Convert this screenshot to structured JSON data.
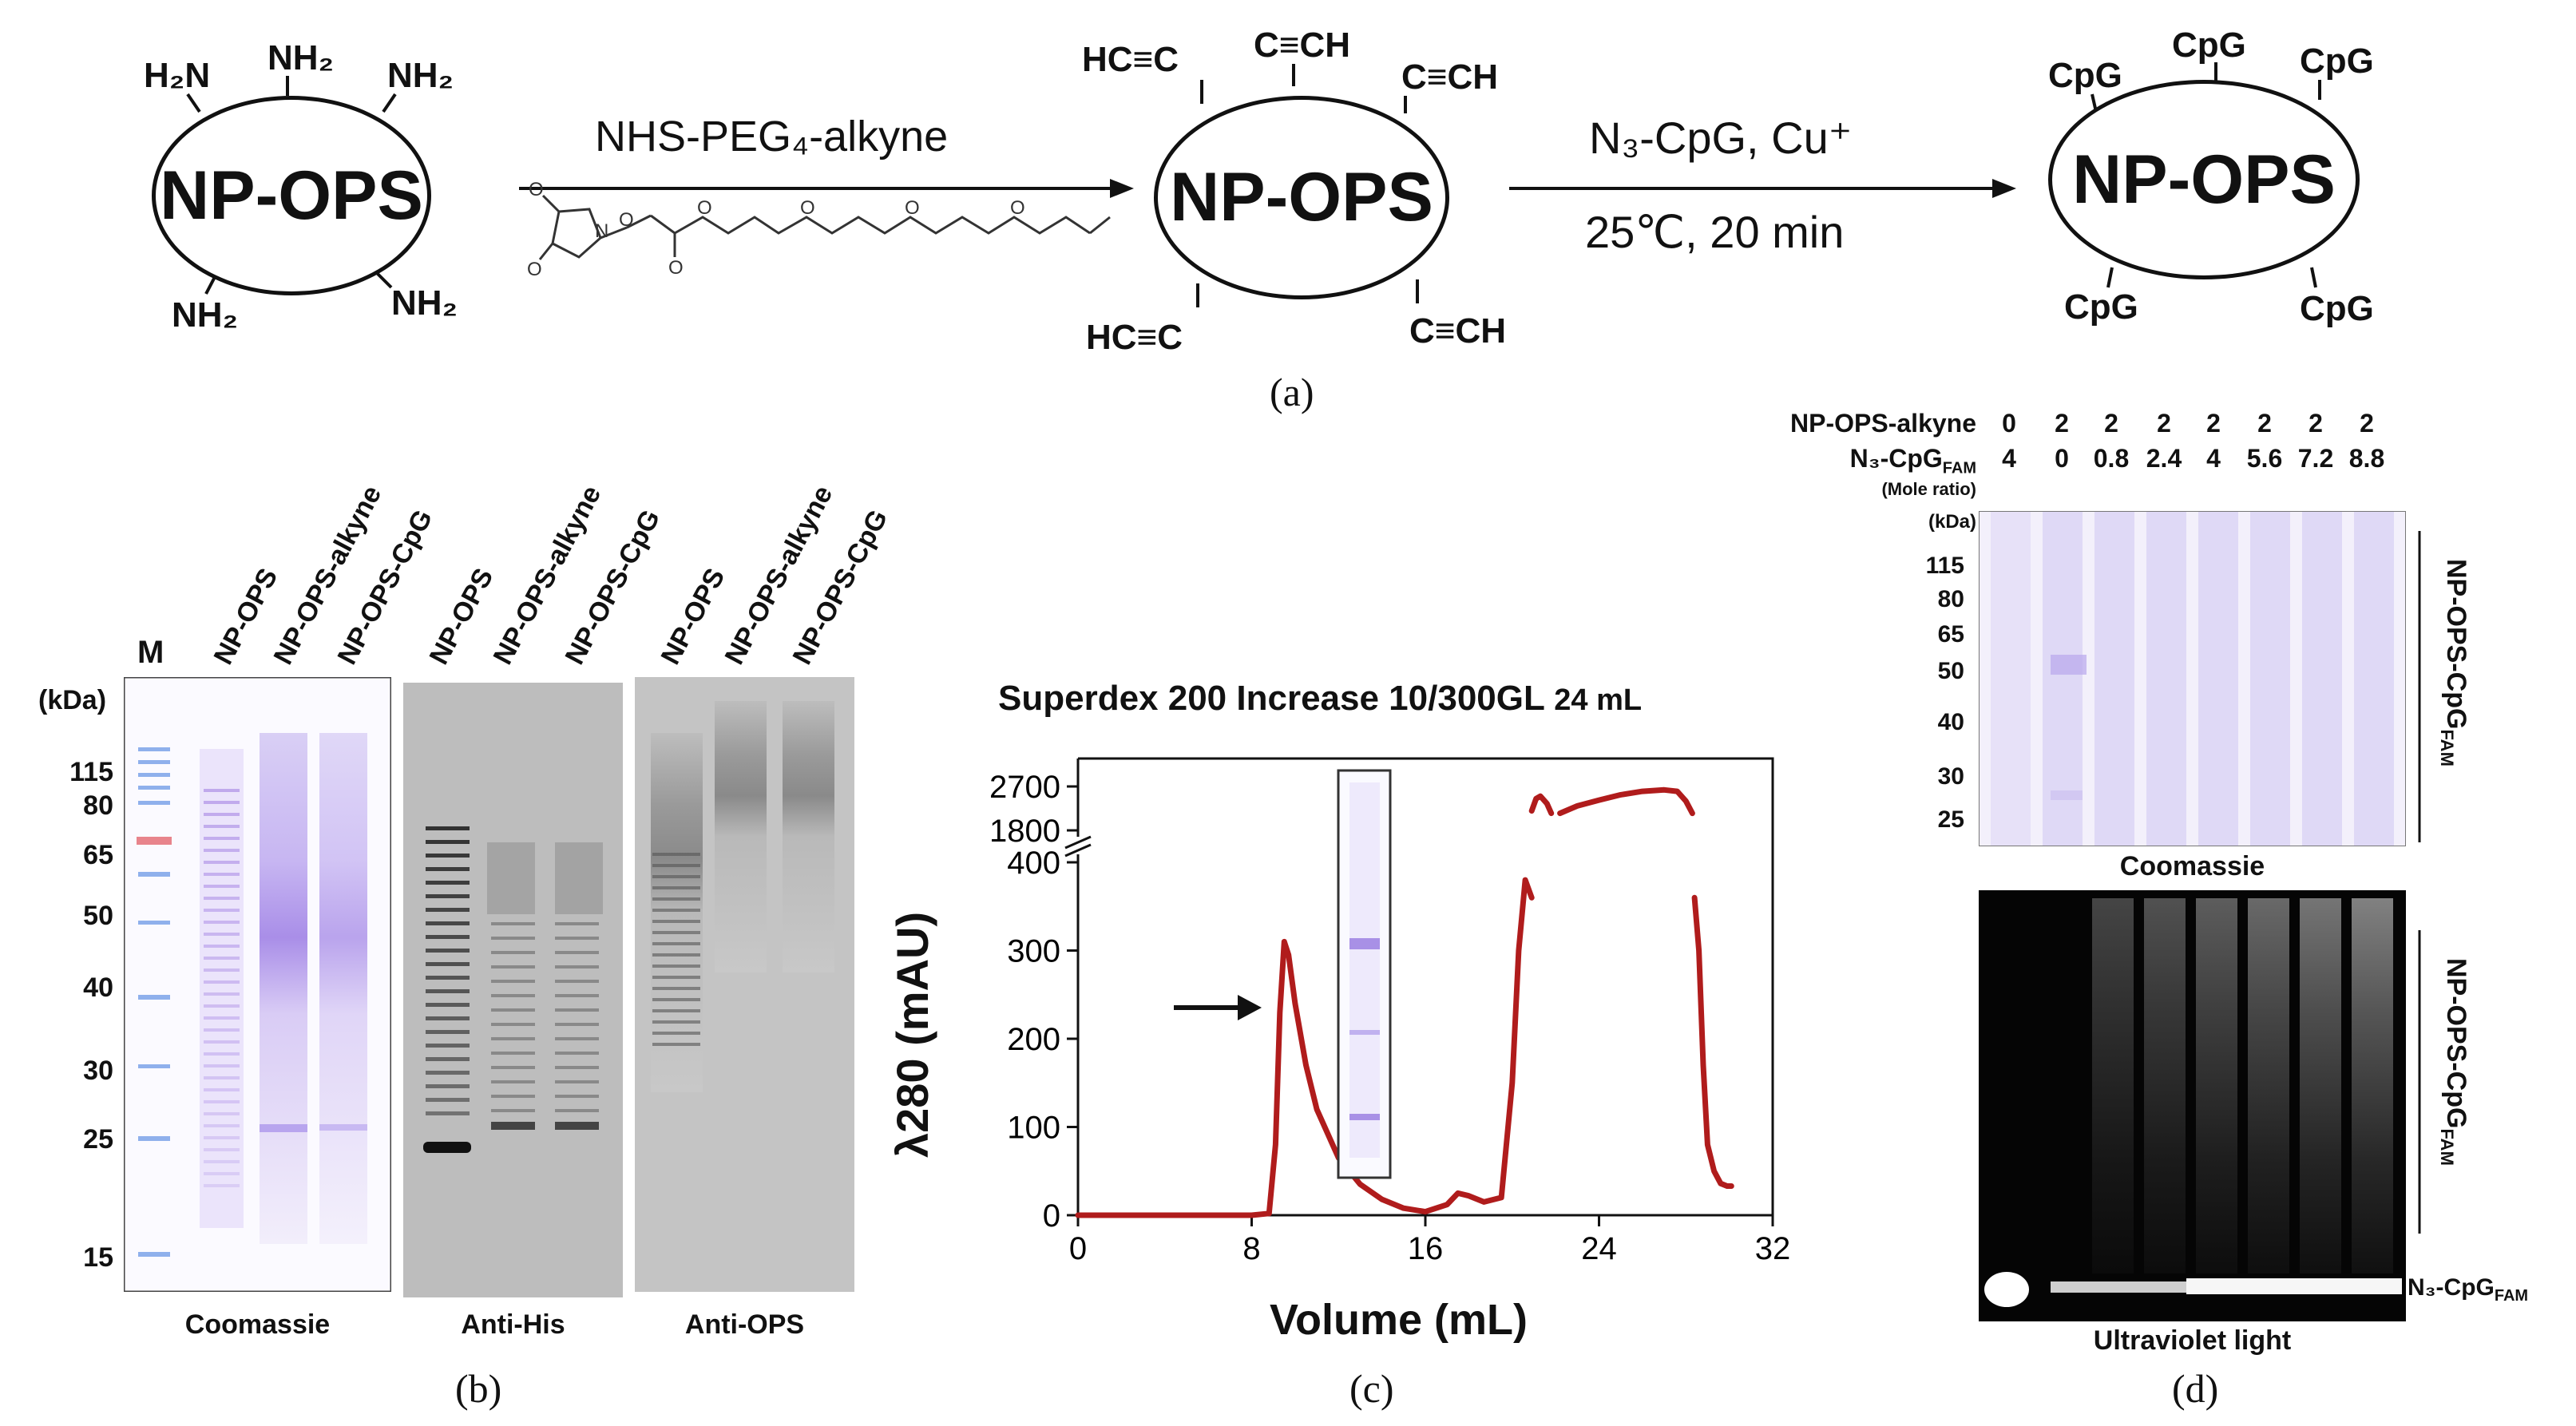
{
  "panel_a": {
    "np1": {
      "center": "NP-OPS",
      "groups": [
        "H₂N",
        "NH₂",
        "NH₂",
        "NH₂",
        "NH₂"
      ]
    },
    "arrow1_label": "NHS-PEG₄-alkyne",
    "np2": {
      "center": "NP-OPS",
      "groups": [
        "HC≡C",
        "C≡CH",
        "C≡CH",
        "HC≡C",
        "C≡CH"
      ]
    },
    "arrow2_label_top": "N₃-CpG, Cu⁺",
    "arrow2_label_bottom": "25℃,  20 min",
    "np3": {
      "center": "NP-OPS",
      "groups": [
        "CpG",
        "CpG",
        "CpG",
        "CpG",
        "CpG"
      ]
    },
    "label": "(a)"
  },
  "panel_b": {
    "marker_label": "M",
    "kda_label": "(kDa)",
    "mw_markers": [
      "115",
      "80",
      "65",
      "50",
      "40",
      "30",
      "25",
      "15"
    ],
    "lanes": [
      "NP-OPS",
      "NP-OPS-alkyne",
      "NP-OPS-CpG"
    ],
    "captions": [
      "Coomassie",
      "Anti-His",
      "Anti-OPS"
    ],
    "label": "(b)"
  },
  "panel_c": {
    "title": "Superdex 200 Increase 10/300GL",
    "title_suffix": "24 mL",
    "ylabel": "λ280 (mAU)",
    "xlabel": "Volume (mL)",
    "label": "(c)"
  },
  "chart_data": {
    "type": "line",
    "title": "Superdex 200 Increase 10/300GL 24 mL",
    "xlabel": "Volume (mL)",
    "ylabel": "λ280 (mAU)",
    "xlim": [
      0,
      32
    ],
    "ylim_lower": [
      0,
      400
    ],
    "ylim_upper": [
      1800,
      2700
    ],
    "x_ticks": [
      "0",
      "8",
      "16",
      "24",
      "32"
    ],
    "y_ticks_lower": [
      "0",
      "100",
      "200",
      "300",
      "400"
    ],
    "y_ticks_upper": [
      "1800",
      "2700"
    ],
    "color": "#b01c1c",
    "series": [
      {
        "x": [
          0,
          4,
          8,
          8.8,
          9.1,
          9.3,
          9.5,
          9.7,
          10.0,
          10.5,
          11.0,
          12.0,
          13.0,
          14.0,
          15.0,
          16.0,
          17.0,
          17.5,
          18.0,
          18.7,
          19.5,
          20.0,
          20.3,
          20.6,
          20.9
        ],
        "y": [
          0,
          0,
          0,
          2,
          80,
          230,
          310,
          295,
          240,
          170,
          120,
          65,
          35,
          18,
          8,
          4,
          12,
          25,
          22,
          15,
          20,
          150,
          300,
          380,
          420
        ]
      },
      {
        "x": [
          28.4,
          28.6,
          28.8,
          29.0,
          29.3,
          29.6,
          29.9,
          30.1
        ],
        "y": [
          420,
          300,
          170,
          80,
          50,
          36,
          33,
          33
        ]
      },
      {
        "x": [
          20.9,
          21.1,
          21.3,
          21.6,
          21.8
        ],
        "y": [
          2200,
          2450,
          2500,
          2350,
          2150
        ]
      },
      {
        "x": [
          22.2,
          23.0,
          24.0,
          25.0,
          26.0,
          27.0,
          27.6,
          28.0,
          28.3
        ],
        "y": [
          2150,
          2300,
          2420,
          2530,
          2600,
          2630,
          2600,
          2400,
          2150
        ]
      }
    ]
  },
  "panel_d": {
    "row1_label": "NP-OPS-alkyne",
    "row1_values": [
      "0",
      "2",
      "2",
      "2",
      "2",
      "2",
      "2",
      "2"
    ],
    "row2_label": "N₃-CpG",
    "row2_sub": "FAM",
    "row2_values": [
      "4",
      "0",
      "0.8",
      "2.4",
      "4",
      "5.6",
      "7.2",
      "8.8"
    ],
    "ratio_note": "(Mole ratio)",
    "kda_label": "(kDa)",
    "mw_markers": [
      "115",
      "80",
      "65",
      "50",
      "40",
      "30",
      "25"
    ],
    "side_label": "NP-OPS-CpG",
    "side_sub": "FAM",
    "free_label": "N₃-CpG",
    "free_sub": "FAM",
    "caption_top": "Coomassie",
    "caption_bottom": "Ultraviolet light",
    "label": "(d)"
  }
}
